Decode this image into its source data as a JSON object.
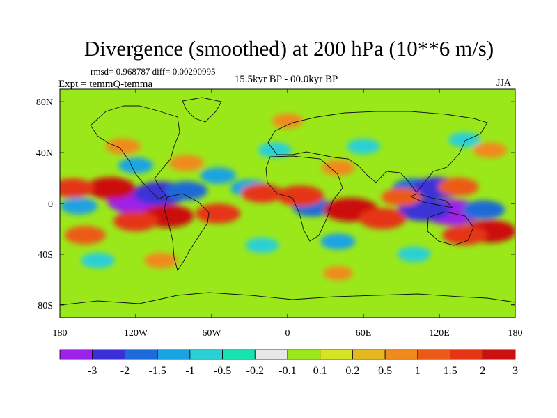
{
  "chart_data": {
    "type": "heatmap",
    "title": "Divergence (smoothed) at 200 hPa (10**6 m/s)",
    "stats_text": "rmsd= 0.968787 diff= 0.00290995",
    "subtitle": "15.5kyr BP - 00.0kyr BP",
    "left_label": "Expt = temmQ-temma",
    "right_label": "JJA",
    "x_ticks": [
      {
        "lon": -180,
        "label": "180"
      },
      {
        "lon": -120,
        "label": "120W"
      },
      {
        "lon": -60,
        "label": "60W"
      },
      {
        "lon": 0,
        "label": "0"
      },
      {
        "lon": 60,
        "label": "60E"
      },
      {
        "lon": 120,
        "label": "120E"
      },
      {
        "lon": 180,
        "label": "180"
      }
    ],
    "y_ticks": [
      {
        "lat": 80,
        "label": "80N"
      },
      {
        "lat": 40,
        "label": "40N"
      },
      {
        "lat": 0,
        "label": "0"
      },
      {
        "lat": -40,
        "label": "40S"
      },
      {
        "lat": -80,
        "label": "80S"
      }
    ],
    "x_range": [
      -180,
      180
    ],
    "y_range": [
      -90,
      90
    ],
    "colorbar": {
      "levels": [
        "-3",
        "-2",
        "-1.5",
        "-1",
        "-0.5",
        "-0.2",
        "-0.1",
        "0.1",
        "0.2",
        "0.5",
        "1",
        "1.5",
        "2",
        "3"
      ],
      "colors": [
        "#9d22e8",
        "#3b30d8",
        "#1c6bd8",
        "#1aa3e3",
        "#2ad0d6",
        "#16e3b0",
        "#e8e8e8",
        "#9be81a",
        "#d6e426",
        "#e6b81f",
        "#f08a1c",
        "#ec5a18",
        "#e53515",
        "#cc1010"
      ]
    },
    "anomalies": [
      {
        "lon": -118,
        "lat": 2,
        "value": -3.2
      },
      {
        "lon": -100,
        "lat": 8,
        "value": -2.6
      },
      {
        "lon": -80,
        "lat": 10,
        "value": -1.6
      },
      {
        "lon": 130,
        "lat": -7,
        "value": -3.0
      },
      {
        "lon": 108,
        "lat": -5,
        "value": -2.4
      },
      {
        "lon": 100,
        "lat": 12,
        "value": -1.7
      },
      {
        "lon": 118,
        "lat": 12,
        "value": -2.2
      },
      {
        "lon": 155,
        "lat": -5,
        "value": -1.6
      },
      {
        "lon": -165,
        "lat": -2,
        "value": -1.2
      },
      {
        "lon": -120,
        "lat": 30,
        "value": -1.0
      },
      {
        "lon": -55,
        "lat": 22,
        "value": -1.1
      },
      {
        "lon": -30,
        "lat": 12,
        "value": -1.3
      },
      {
        "lon": 20,
        "lat": -3,
        "value": -1.5
      },
      {
        "lon": -10,
        "lat": 42,
        "value": -0.9
      },
      {
        "lon": 60,
        "lat": 45,
        "value": -0.9
      },
      {
        "lon": 140,
        "lat": 50,
        "value": -0.8
      },
      {
        "lon": -20,
        "lat": -33,
        "value": -0.9
      },
      {
        "lon": 40,
        "lat": -30,
        "value": -1.0
      },
      {
        "lon": -150,
        "lat": -45,
        "value": -0.9
      },
      {
        "lon": 100,
        "lat": -40,
        "value": -0.9
      },
      {
        "lon": -140,
        "lat": 12,
        "value": 2.2
      },
      {
        "lon": -170,
        "lat": 12,
        "value": 1.7
      },
      {
        "lon": -95,
        "lat": -10,
        "value": 2.4
      },
      {
        "lon": -120,
        "lat": -14,
        "value": 1.8
      },
      {
        "lon": -55,
        "lat": -8,
        "value": 1.8
      },
      {
        "lon": -20,
        "lat": 8,
        "value": 1.6
      },
      {
        "lon": 10,
        "lat": 6,
        "value": 2.0
      },
      {
        "lon": 50,
        "lat": -5,
        "value": 2.6
      },
      {
        "lon": 75,
        "lat": -12,
        "value": 2.0
      },
      {
        "lon": 90,
        "lat": 5,
        "value": 1.4
      },
      {
        "lon": 135,
        "lat": 13,
        "value": 1.5
      },
      {
        "lon": 160,
        "lat": -22,
        "value": 2.4
      },
      {
        "lon": 140,
        "lat": -25,
        "value": 1.8
      },
      {
        "lon": -160,
        "lat": -25,
        "value": 1.5
      },
      {
        "lon": -130,
        "lat": 45,
        "value": 1.0
      },
      {
        "lon": -80,
        "lat": 32,
        "value": 1.0
      },
      {
        "lon": 40,
        "lat": 28,
        "value": 0.9
      },
      {
        "lon": 160,
        "lat": 42,
        "value": 0.9
      },
      {
        "lon": 0,
        "lat": 65,
        "value": 0.7
      },
      {
        "lon": -100,
        "lat": -45,
        "value": 0.9
      },
      {
        "lon": 40,
        "lat": -55,
        "value": 0.6
      }
    ]
  }
}
